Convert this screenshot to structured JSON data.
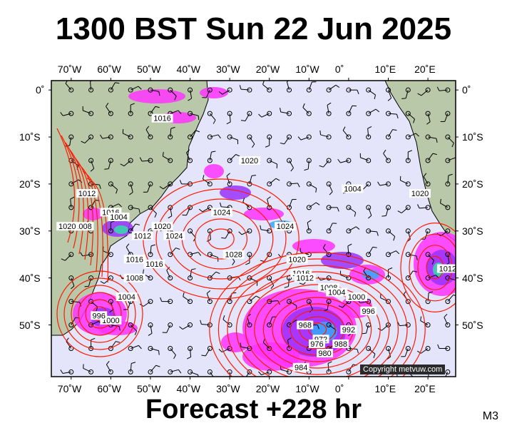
{
  "title": "1300 BST Sun 22 Jun 2025",
  "footer": "Forecast +228 hr",
  "model": "M3",
  "copyright": "Copyright metvuw.com",
  "axes": {
    "lon_labels": [
      "70˚W",
      "60˚W",
      "50˚W",
      "40˚W",
      "30˚W",
      "20˚W",
      "10˚W",
      "0˚",
      "10˚E",
      "20˚E"
    ],
    "lat_labels": [
      "0˚",
      "10˚S",
      "20˚S",
      "30˚S",
      "40˚S",
      "50˚S"
    ]
  },
  "isobars": [
    {
      "value": "1016",
      "lon": -47,
      "lat": -6
    },
    {
      "value": "1020",
      "lon": -25,
      "lat": -15
    },
    {
      "value": "1012",
      "lon": -66,
      "lat": -22
    },
    {
      "value": "1016",
      "lon": -60,
      "lat": -26
    },
    {
      "value": "1004",
      "lon": -58,
      "lat": -27
    },
    {
      "value": "1008",
      "lon": -67,
      "lat": -29
    },
    {
      "value": "1020",
      "lon": -71,
      "lat": -29
    },
    {
      "value": "1020",
      "lon": -47,
      "lat": -29
    },
    {
      "value": "1024",
      "lon": -44,
      "lat": -31
    },
    {
      "value": "1012",
      "lon": -52,
      "lat": -31
    },
    {
      "value": "1024",
      "lon": -32,
      "lat": -26
    },
    {
      "value": "1024",
      "lon": -16,
      "lat": -29
    },
    {
      "value": "1028",
      "lon": -29,
      "lat": -35
    },
    {
      "value": "1004",
      "lon": 1,
      "lat": -21
    },
    {
      "value": "1020",
      "lon": 18,
      "lat": -22
    },
    {
      "value": "1020",
      "lon": -13,
      "lat": -36
    },
    {
      "value": "1016",
      "lon": -12,
      "lat": -39
    },
    {
      "value": "1012",
      "lon": -11,
      "lat": -40
    },
    {
      "value": "1008",
      "lon": -5,
      "lat": -42
    },
    {
      "value": "1004",
      "lon": -3,
      "lat": -43
    },
    {
      "value": "1000",
      "lon": 2,
      "lat": -44
    },
    {
      "value": "996",
      "lon": 5,
      "lat": -47
    },
    {
      "value": "992",
      "lon": 0,
      "lat": -51
    },
    {
      "value": "988",
      "lon": -2,
      "lat": -54
    },
    {
      "value": "984",
      "lon": -12,
      "lat": -59
    },
    {
      "value": "968",
      "lon": -11,
      "lat": -50
    },
    {
      "value": "972",
      "lon": -7,
      "lat": -53
    },
    {
      "value": "976",
      "lon": -8,
      "lat": -54
    },
    {
      "value": "980",
      "lon": -6,
      "lat": -56
    },
    {
      "value": "1016",
      "lon": -54,
      "lat": -36
    },
    {
      "value": "1008",
      "lon": -54,
      "lat": -40
    },
    {
      "value": "1004",
      "lon": -56,
      "lat": -44
    },
    {
      "value": "1000",
      "lon": -60,
      "lat": -49
    },
    {
      "value": "996",
      "lon": -63,
      "lat": -48
    },
    {
      "value": "1016",
      "lon": -49,
      "lat": -37
    },
    {
      "value": "1012",
      "lon": 25,
      "lat": -38
    }
  ],
  "colors": {
    "ocean": "#e4e4fa",
    "land": "#b8c8a8",
    "isobar": "#ff1a00",
    "rain_light": "#ff33ff",
    "rain_mid": "#9933ff",
    "rain_heavy": "#33aaff",
    "rain_extreme": "#33ddaa"
  }
}
